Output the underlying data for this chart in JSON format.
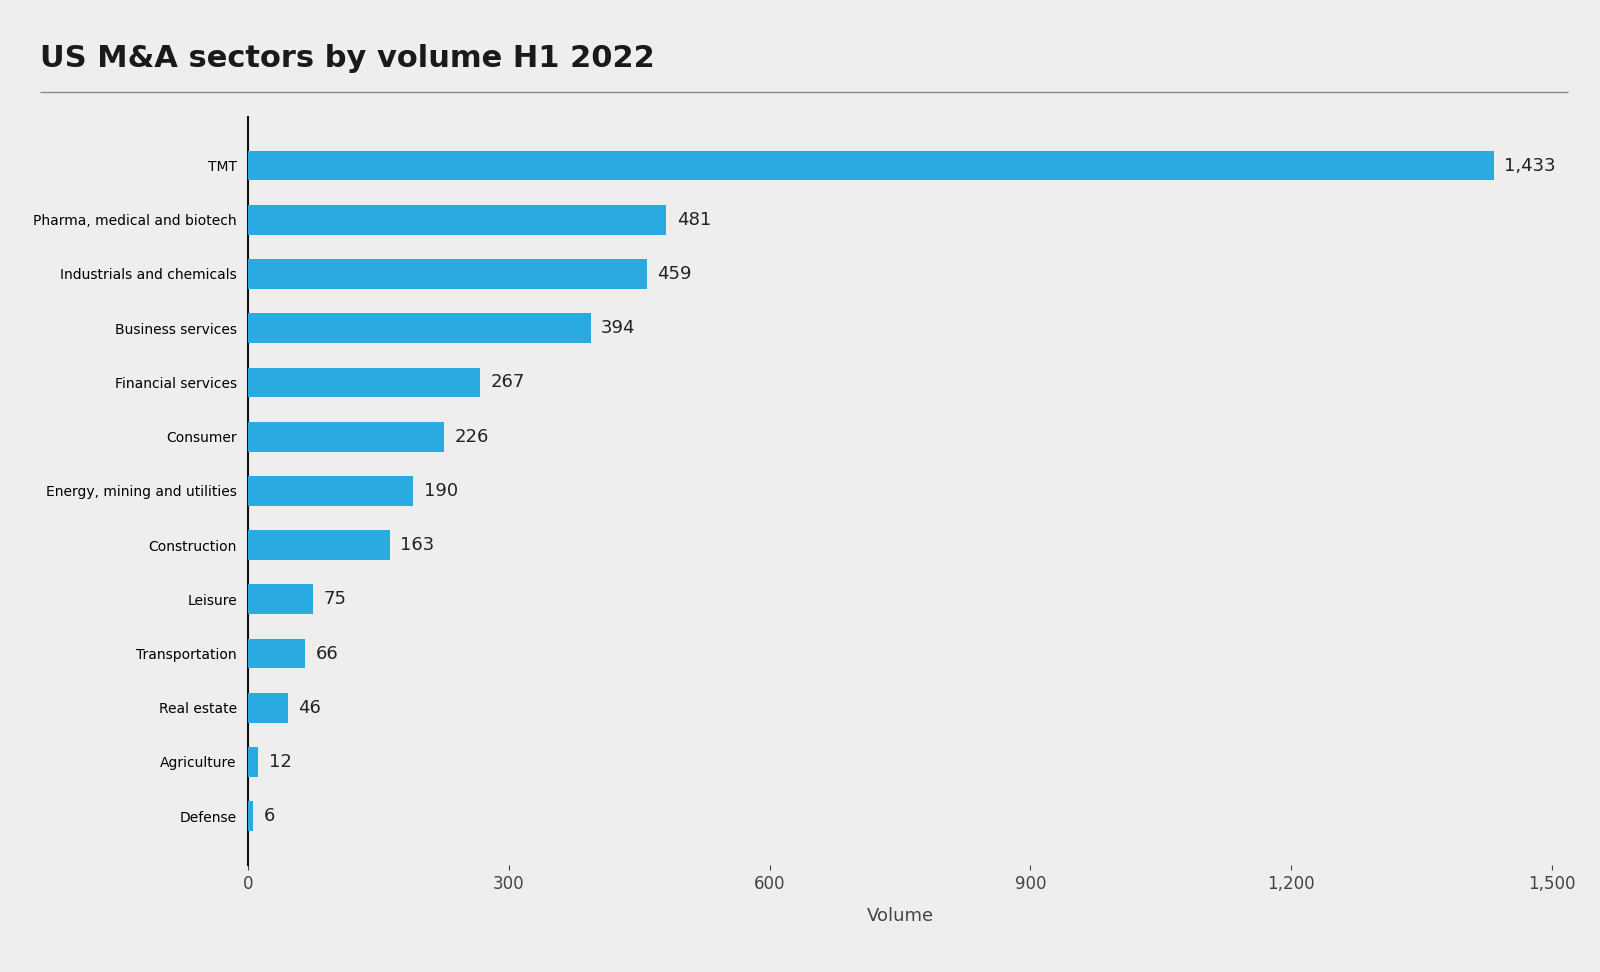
{
  "title": "US M&A sectors by volume H1 2022",
  "categories": [
    "TMT",
    "Pharma, medical and biotech",
    "Industrials and chemicals",
    "Business services",
    "Financial services",
    "Consumer",
    "Energy, mining and utilities",
    "Construction",
    "Leisure",
    "Transportation",
    "Real estate",
    "Agriculture",
    "Defense"
  ],
  "values": [
    1433,
    481,
    459,
    394,
    267,
    226,
    190,
    163,
    75,
    66,
    46,
    12,
    6
  ],
  "bar_color": "#29abe2",
  "background_color": "#eeeeee",
  "title_fontsize": 22,
  "label_fontsize": 13,
  "tick_fontsize": 12,
  "xlabel": "Volume",
  "xlim": [
    0,
    1500
  ],
  "xticks": [
    0,
    300,
    600,
    900,
    1200,
    1500
  ]
}
